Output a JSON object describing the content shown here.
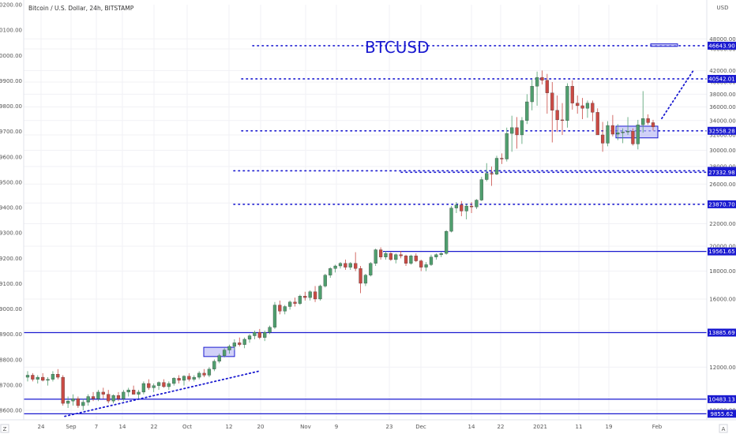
{
  "header": {
    "symbol_line": "Bitcoin / U.S. Dollar, 24h, BITSTAMP",
    "big_label": "BTCUSD",
    "right_axis_unit": "USD",
    "corner_left": "Z",
    "corner_right": "A"
  },
  "colors": {
    "up": "#4f9e6e",
    "down": "#c94a44",
    "level": "#1a1ad0",
    "box_fill": "#b8b8f4",
    "grid": "#f1f1f5"
  },
  "chart_data": {
    "type": "candlestick",
    "left_axis": {
      "ticks": [
        "10200.00",
        "10100.00",
        "10000.00",
        "9900.00",
        "9800.00",
        "9700.00",
        "9600.00",
        "9500.00",
        "9400.00",
        "9300.00",
        "9200.00",
        "9100.00",
        "9000.00",
        "8900.00",
        "8800.00",
        "8700.00",
        "8600.00"
      ],
      "values": [
        10200,
        10100,
        10000,
        9900,
        9800,
        9700,
        9600,
        9500,
        9400,
        9300,
        9200,
        9100,
        9000,
        8900,
        8800,
        8700,
        8600
      ]
    },
    "right_axis": {
      "ticks": [
        "48000.00",
        "46000.00",
        "42000.00",
        "40000.00",
        "38000.00",
        "36000.00",
        "34000.00",
        "32000.00",
        "30000.00",
        "28000.00",
        "26000.00",
        "24000.00",
        "22000.00",
        "20000.00",
        "18000.00",
        "16000.00",
        "14000.00",
        "12000.00",
        "10000.00"
      ],
      "values": [
        48000,
        46000,
        42000,
        40000,
        38000,
        36000,
        34000,
        32000,
        30000,
        28000,
        26000,
        24000,
        22000,
        20000,
        18000,
        16000,
        14000,
        12000,
        10000
      ]
    },
    "x_axis": {
      "labels": [
        "24",
        "Sep",
        "7",
        "14",
        "22",
        "Oct",
        "12",
        "20",
        "Nov",
        "9",
        "23",
        "Dec",
        "14",
        "22",
        "2021",
        "11",
        "19",
        "Feb"
      ],
      "positions": [
        52,
        90,
        122,
        155,
        195,
        237,
        290,
        330,
        387,
        426,
        493,
        533,
        597,
        634,
        684,
        733,
        771,
        832
      ]
    },
    "levels": [
      {
        "label": "46643.90",
        "value": 46643.9,
        "style": "dotted",
        "x_start": 320
      },
      {
        "label": "40542.01",
        "value": 40542.01,
        "style": "dotted",
        "x_start": 306
      },
      {
        "label": "32558.28",
        "value": 32558.28,
        "style": "dotted",
        "x_start": 306
      },
      {
        "label": "27495.92",
        "value": 27495.92,
        "style": "dotted",
        "x_start": 296
      },
      {
        "label": "27332.98",
        "value": 27332.98,
        "style": "dotted",
        "x_start": 508
      },
      {
        "label": "23870.70",
        "value": 23870.7,
        "style": "dotted",
        "x_start": 296
      },
      {
        "label": "19561.65",
        "value": 19561.65,
        "style": "solid",
        "x_start": 485
      },
      {
        "label": "13885.69",
        "value": 13885.69,
        "style": "solid",
        "x_start": 0
      },
      {
        "label": "10483.13",
        "value": 10483.13,
        "style": "solid",
        "x_start": 0
      },
      {
        "label": "9855.62",
        "value": 9855.62,
        "style": "solid",
        "x_start": 0
      }
    ],
    "boxes": [
      {
        "x1": 258,
        "x2": 297,
        "low": 12550,
        "high": 13050
      },
      {
        "x1": 780,
        "x2": 833,
        "low": 31600,
        "high": 33200
      },
      {
        "x1": 824,
        "x2": 858,
        "low": 46500,
        "high": 47000
      }
    ],
    "trend_lines": [
      {
        "points": [
          [
            82,
            9750
          ],
          [
            328,
            11800
          ]
        ]
      },
      {
        "points": [
          [
            838,
            34300
          ],
          [
            878,
            42000
          ]
        ]
      }
    ],
    "candles": [
      [
        11500,
        11800,
        11300,
        11600
      ],
      [
        11600,
        11700,
        11300,
        11400
      ],
      [
        11400,
        11600,
        11200,
        11500
      ],
      [
        11500,
        11700,
        11300,
        11350
      ],
      [
        11350,
        11500,
        11100,
        11400
      ],
      [
        11400,
        11800,
        11300,
        11650
      ],
      [
        11650,
        11900,
        11400,
        11500
      ],
      [
        11500,
        11600,
        10200,
        10300
      ],
      [
        10300,
        10600,
        10100,
        10400
      ],
      [
        10400,
        10700,
        10200,
        10500
      ],
      [
        10500,
        10600,
        10100,
        10200
      ],
      [
        10200,
        10500,
        10000,
        10350
      ],
      [
        10350,
        10700,
        10200,
        10600
      ],
      [
        10600,
        10800,
        10400,
        10500
      ],
      [
        10500,
        10900,
        10400,
        10800
      ],
      [
        10800,
        11000,
        10500,
        10700
      ],
      [
        10700,
        10900,
        10300,
        10400
      ],
      [
        10400,
        10700,
        10300,
        10650
      ],
      [
        10650,
        10800,
        10400,
        10500
      ],
      [
        10500,
        10900,
        10400,
        10800
      ],
      [
        10800,
        11000,
        10600,
        10900
      ],
      [
        10900,
        11100,
        10700,
        10700
      ],
      [
        10700,
        10900,
        10500,
        10800
      ],
      [
        10800,
        11300,
        10700,
        11200
      ],
      [
        11200,
        11400,
        10900,
        11000
      ],
      [
        11000,
        11200,
        10800,
        11100
      ],
      [
        11100,
        11300,
        10900,
        11250
      ],
      [
        11250,
        11400,
        11000,
        11050
      ],
      [
        11050,
        11300,
        10900,
        11200
      ],
      [
        11200,
        11500,
        11100,
        11450
      ],
      [
        11450,
        11600,
        11200,
        11350
      ],
      [
        11350,
        11600,
        11100,
        11550
      ],
      [
        11550,
        11700,
        11300,
        11400
      ],
      [
        11400,
        11600,
        11300,
        11500
      ],
      [
        11500,
        11800,
        11400,
        11700
      ],
      [
        11700,
        11900,
        11500,
        11600
      ],
      [
        11600,
        12000,
        11500,
        11900
      ],
      [
        11900,
        12400,
        11800,
        12300
      ],
      [
        12300,
        12700,
        12200,
        12600
      ],
      [
        12600,
        13000,
        12500,
        12900
      ],
      [
        12900,
        13200,
        12700,
        13100
      ],
      [
        13100,
        13500,
        12900,
        13300
      ],
      [
        13300,
        13600,
        13100,
        13200
      ],
      [
        13200,
        13600,
        13000,
        13500
      ],
      [
        13500,
        13800,
        13300,
        13700
      ],
      [
        13700,
        14000,
        13500,
        13900
      ],
      [
        13900,
        14100,
        13500,
        13600
      ],
      [
        13600,
        14000,
        13400,
        13900
      ],
      [
        13900,
        14300,
        13800,
        14200
      ],
      [
        14200,
        15800,
        14100,
        15600
      ],
      [
        15600,
        15900,
        15000,
        15200
      ],
      [
        15200,
        15600,
        15000,
        15500
      ],
      [
        15500,
        15900,
        15300,
        15800
      ],
      [
        15800,
        16100,
        15500,
        15700
      ],
      [
        15700,
        16300,
        15600,
        16200
      ],
      [
        16200,
        16500,
        15900,
        16100
      ],
      [
        16100,
        16600,
        15900,
        16500
      ],
      [
        16500,
        16900,
        15800,
        16000
      ],
      [
        16000,
        17000,
        15900,
        16900
      ],
      [
        16900,
        17800,
        16800,
        17700
      ],
      [
        17700,
        18300,
        17500,
        18200
      ],
      [
        18200,
        18500,
        17900,
        18400
      ],
      [
        18400,
        18700,
        18200,
        18600
      ],
      [
        18600,
        18900,
        18100,
        18300
      ],
      [
        18300,
        18700,
        18100,
        18600
      ],
      [
        18600,
        19500,
        18000,
        18200
      ],
      [
        18200,
        18400,
        16400,
        17100
      ],
      [
        17100,
        17800,
        16900,
        17700
      ],
      [
        17700,
        18700,
        17600,
        18600
      ],
      [
        18600,
        19800,
        18400,
        19700
      ],
      [
        19700,
        19900,
        18900,
        19100
      ],
      [
        19100,
        19600,
        18900,
        19400
      ],
      [
        19400,
        19500,
        18800,
        18900
      ],
      [
        18900,
        19400,
        18600,
        19300
      ],
      [
        19300,
        19600,
        19000,
        19200
      ],
      [
        19200,
        19300,
        18400,
        18600
      ],
      [
        18600,
        19300,
        18500,
        19200
      ],
      [
        19200,
        19400,
        18700,
        18800
      ],
      [
        18800,
        18900,
        18000,
        18300
      ],
      [
        18300,
        18700,
        18000,
        18500
      ],
      [
        18500,
        19300,
        18400,
        19100
      ],
      [
        19100,
        19400,
        18900,
        19300
      ],
      [
        19300,
        19500,
        19100,
        19400
      ],
      [
        19400,
        21400,
        19300,
        21300
      ],
      [
        21300,
        23700,
        21200,
        23500
      ],
      [
        23500,
        24100,
        23000,
        23800
      ],
      [
        23800,
        24200,
        22700,
        23200
      ],
      [
        23200,
        23900,
        22400,
        23700
      ],
      [
        23700,
        24100,
        23000,
        23600
      ],
      [
        23600,
        24400,
        23400,
        24300
      ],
      [
        24300,
        26800,
        24200,
        26500
      ],
      [
        26500,
        28400,
        26300,
        27200
      ],
      [
        27200,
        28000,
        25800,
        27100
      ],
      [
        27100,
        29300,
        27000,
        29000
      ],
      [
        29000,
        29600,
        28300,
        28900
      ],
      [
        28900,
        33000,
        28600,
        32200
      ],
      [
        32200,
        34700,
        29800,
        33000
      ],
      [
        33000,
        34500,
        30200,
        32000
      ],
      [
        32000,
        34500,
        30800,
        34000
      ],
      [
        34000,
        38000,
        33500,
        36800
      ],
      [
        36800,
        40400,
        35500,
        39300
      ],
      [
        39300,
        41800,
        36200,
        40800
      ],
      [
        40800,
        42000,
        39600,
        40300
      ],
      [
        40300,
        41400,
        35000,
        38200
      ],
      [
        38200,
        40000,
        31000,
        35500
      ],
      [
        35500,
        37800,
        32400,
        34100
      ],
      [
        34100,
        36600,
        32000,
        34000
      ],
      [
        34000,
        39800,
        33000,
        39300
      ],
      [
        39300,
        40300,
        35600,
        36600
      ],
      [
        36600,
        37800,
        35000,
        36200
      ],
      [
        36200,
        37400,
        34200,
        35800
      ],
      [
        35800,
        37000,
        34400,
        36600
      ],
      [
        36600,
        37000,
        33900,
        35200
      ],
      [
        35200,
        35800,
        32100,
        32000
      ],
      [
        32000,
        33800,
        29800,
        30900
      ],
      [
        30900,
        33900,
        30500,
        33300
      ],
      [
        33300,
        34800,
        31800,
        32100
      ],
      [
        32100,
        33500,
        31300,
        32300
      ],
      [
        32300,
        32900,
        30900,
        32400
      ],
      [
        32400,
        34500,
        32000,
        32500
      ],
      [
        32500,
        32900,
        30600,
        30800
      ],
      [
        30800,
        34100,
        30100,
        33400
      ],
      [
        33400,
        38500,
        32300,
        34300
      ],
      [
        34300,
        34900,
        33400,
        33700
      ],
      [
        33700,
        34100,
        32600,
        33100
      ]
    ]
  }
}
